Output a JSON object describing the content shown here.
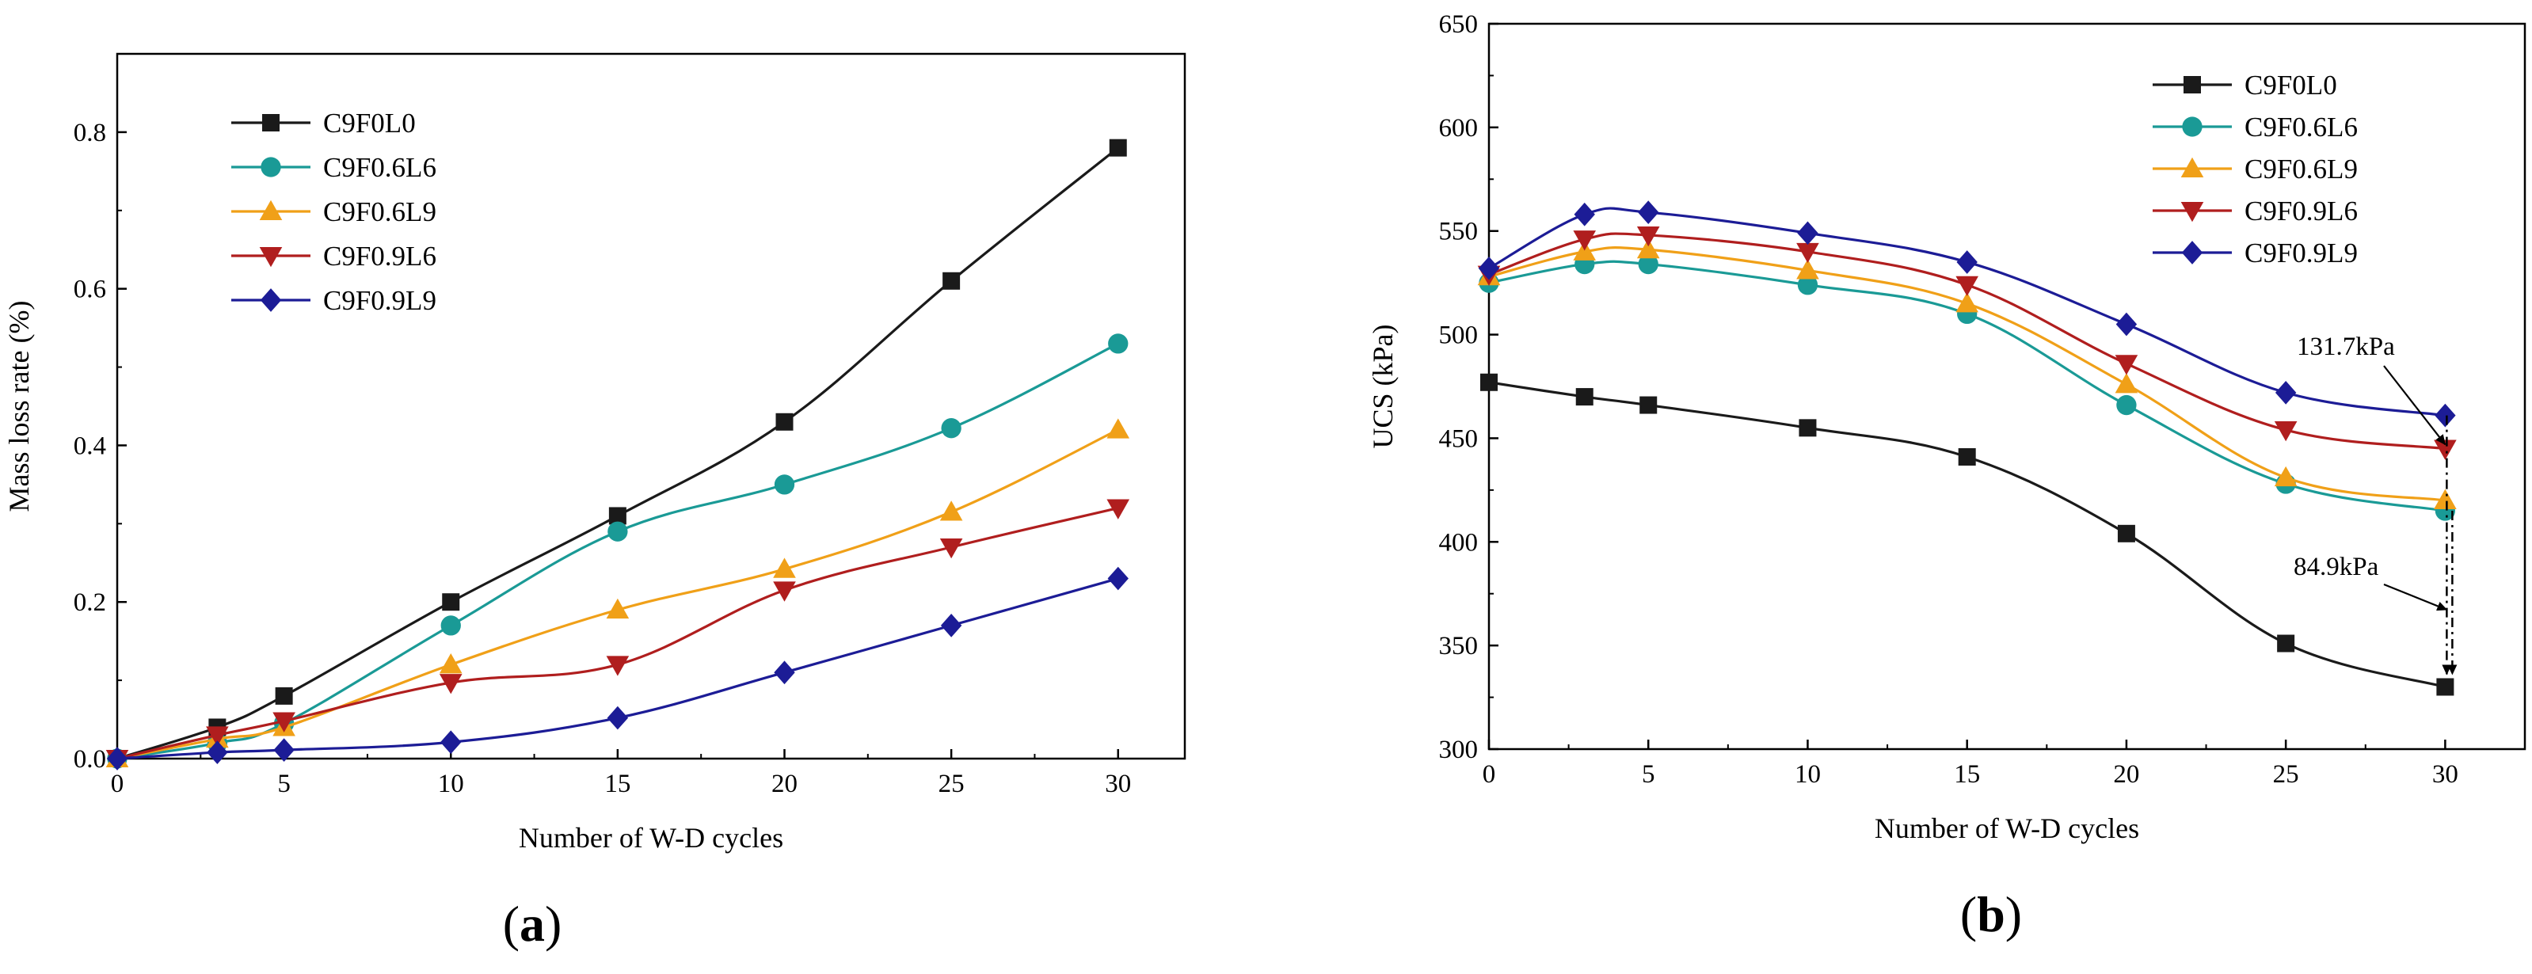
{
  "chart_data": [
    {
      "type": "line",
      "panel_label": "a",
      "xlabel": "Number of W-D cycles",
      "ylabel": "Mass loss rate (%)",
      "xlim": [
        0,
        32
      ],
      "ylim": [
        0,
        0.9
      ],
      "xticks": [
        0,
        5,
        10,
        15,
        20,
        25,
        30
      ],
      "yticks": [
        0.0,
        0.2,
        0.4,
        0.6,
        0.8
      ],
      "ytick_labels": [
        "0.0",
        "0.2",
        "0.4",
        "0.6",
        "0.8"
      ],
      "legend_position": "top-left",
      "x": [
        0,
        3,
        5,
        10,
        15,
        20,
        25,
        30
      ],
      "series": [
        {
          "name": "C9F0L0",
          "color": "#1a1a1a",
          "marker": "square",
          "values": [
            0,
            0.04,
            0.08,
            0.2,
            0.31,
            0.43,
            0.61,
            0.78
          ]
        },
        {
          "name": "C9F0.6L6",
          "color": "#1a9a96",
          "marker": "circle",
          "values": [
            0,
            0.02,
            0.045,
            0.17,
            0.29,
            0.35,
            0.422,
            0.53
          ]
        },
        {
          "name": "C9F0.6L9",
          "color": "#f0a018",
          "marker": "triangle-up",
          "values": [
            0,
            0.025,
            0.04,
            0.12,
            0.19,
            0.242,
            0.315,
            0.42
          ]
        },
        {
          "name": "C9F0.9L6",
          "color": "#b01e1e",
          "marker": "triangle-down",
          "values": [
            0,
            0.03,
            0.048,
            0.097,
            0.12,
            0.215,
            0.27,
            0.32
          ]
        },
        {
          "name": "C9F0.9L9",
          "color": "#1c1c96",
          "marker": "diamond",
          "values": [
            0,
            0.008,
            0.011,
            0.021,
            0.052,
            0.11,
            0.17,
            0.23
          ]
        }
      ]
    },
    {
      "type": "line",
      "panel_label": "b",
      "xlabel": "Number of W-D cycles",
      "ylabel": "UCS (kPa)",
      "xlim": [
        0,
        32.5
      ],
      "ylim": [
        300,
        650
      ],
      "xticks": [
        0,
        5,
        10,
        15,
        20,
        25,
        30
      ],
      "yticks": [
        300,
        350,
        400,
        450,
        500,
        550,
        600,
        650
      ],
      "ytick_labels": [
        "300",
        "350",
        "400",
        "450",
        "500",
        "550",
        "600",
        "650"
      ],
      "legend_position": "top-right",
      "x": [
        0,
        3,
        5,
        10,
        15,
        20,
        25,
        30
      ],
      "series": [
        {
          "name": "C9F0L0",
          "color": "#1a1a1a",
          "marker": "square",
          "values": [
            477,
            470,
            466,
            455,
            441,
            404,
            351,
            330
          ]
        },
        {
          "name": "C9F0.6L6",
          "color": "#1a9a96",
          "marker": "circle",
          "values": [
            525,
            534,
            534,
            524,
            510,
            466,
            428,
            415
          ]
        },
        {
          "name": "C9F0.6L9",
          "color": "#f0a018",
          "marker": "triangle-up",
          "values": [
            528,
            540,
            541,
            531,
            515,
            476,
            431,
            420
          ]
        },
        {
          "name": "C9F0.9L6",
          "color": "#b01e1e",
          "marker": "triangle-down",
          "values": [
            529,
            546,
            548,
            540,
            524,
            486,
            454,
            445
          ]
        },
        {
          "name": "C9F0.9L9",
          "color": "#1c1c96",
          "marker": "diamond",
          "values": [
            532,
            558,
            559,
            549,
            535,
            505,
            472,
            461
          ]
        }
      ],
      "annotations": [
        {
          "text": "131.7kPa",
          "x": 30,
          "y_from": 461,
          "y_to": 330
        },
        {
          "text": "84.9kPa",
          "x": 30,
          "y_from": 415,
          "y_to": 330
        }
      ]
    }
  ]
}
